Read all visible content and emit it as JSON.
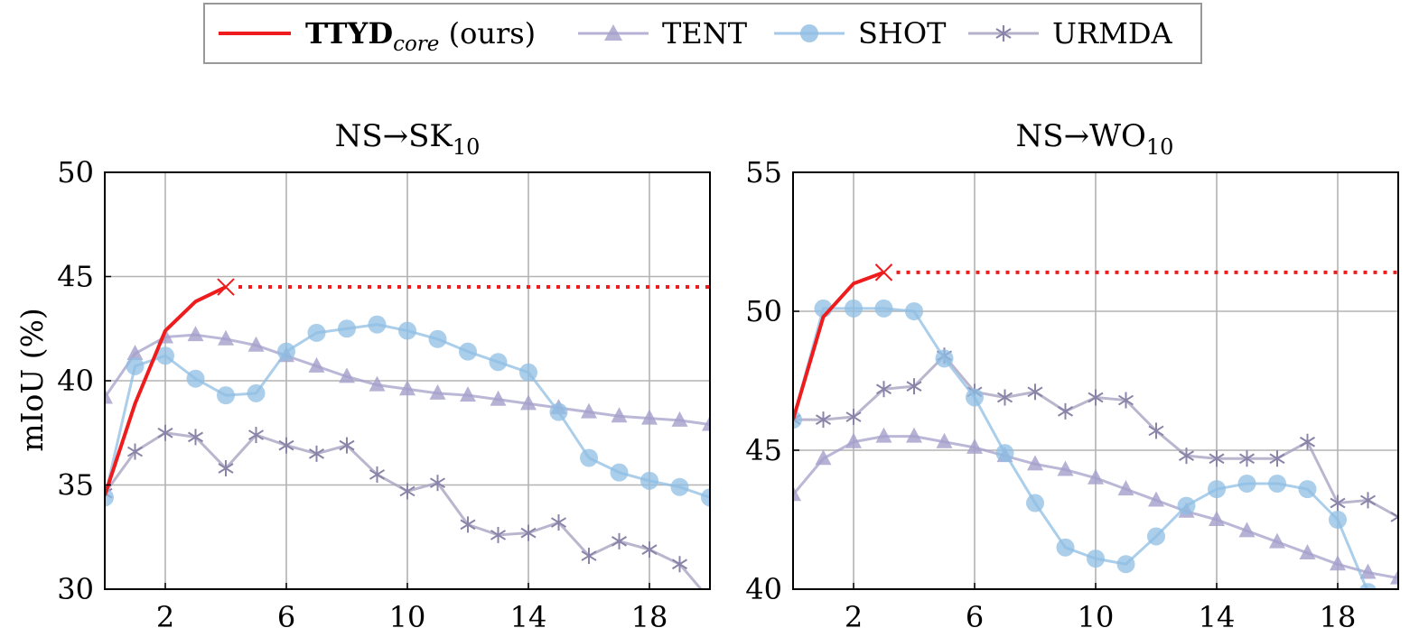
{
  "legend": {
    "items": [
      {
        "key": "ttyd",
        "label_main": "TTYD",
        "label_sub": "core",
        "label_tail": " (ours)",
        "color": "#ee1c1c",
        "marker": "line"
      },
      {
        "key": "tent",
        "label": "TENT",
        "color": "#a49fca",
        "marker": "triangle"
      },
      {
        "key": "shot",
        "label": "SHOT",
        "color": "#8fbde3",
        "marker": "circle"
      },
      {
        "key": "urmda",
        "label": "URMDA",
        "color": "#a39ebd",
        "marker": "asterisk"
      }
    ]
  },
  "colors": {
    "ttyd": "#ee1c1c",
    "tent": "#a49fca",
    "shot": "#8fbde3",
    "urmda": "#a39ebd",
    "grid": "#b3b3b3"
  },
  "chart_data": [
    {
      "type": "line",
      "title_main": "NS→SK",
      "title_sub": "10",
      "ylabel": "mIoU (%)",
      "xlim": [
        0,
        20
      ],
      "ylim": [
        30,
        50
      ],
      "xticks": [
        2,
        6,
        10,
        14,
        18
      ],
      "yticks": [
        30,
        35,
        40,
        45,
        50
      ],
      "grid": true,
      "series": [
        {
          "name": "TTYD_core (ours)",
          "key": "ttyd",
          "x": [
            0,
            1,
            2,
            3,
            4
          ],
          "values": [
            34.5,
            38.9,
            42.4,
            43.8,
            44.5
          ],
          "extend_to": 20
        },
        {
          "name": "TENT",
          "key": "tent",
          "x": [
            0,
            1,
            2,
            3,
            4,
            5,
            6,
            7,
            8,
            9,
            10,
            11,
            12,
            13,
            14,
            15,
            16,
            17,
            18,
            19,
            20
          ],
          "values": [
            39.2,
            41.3,
            42.1,
            42.2,
            42.0,
            41.7,
            41.2,
            40.7,
            40.2,
            39.8,
            39.6,
            39.4,
            39.3,
            39.1,
            38.9,
            38.7,
            38.5,
            38.3,
            38.2,
            38.1,
            37.9
          ]
        },
        {
          "name": "SHOT",
          "key": "shot",
          "x": [
            0,
            1,
            2,
            3,
            4,
            5,
            6,
            7,
            8,
            9,
            10,
            11,
            12,
            13,
            14,
            15,
            16,
            17,
            18,
            19,
            20
          ],
          "values": [
            34.4,
            40.7,
            41.2,
            40.1,
            39.3,
            39.4,
            41.4,
            42.3,
            42.5,
            42.7,
            42.4,
            42.0,
            41.4,
            40.9,
            40.4,
            38.5,
            36.3,
            35.6,
            35.2,
            34.9,
            34.4
          ]
        },
        {
          "name": "URMDA",
          "key": "urmda",
          "x": [
            0,
            1,
            2,
            3,
            4,
            5,
            6,
            7,
            8,
            9,
            10,
            11,
            12,
            13,
            14,
            15,
            16,
            17,
            18,
            19,
            20
          ],
          "values": [
            34.6,
            36.6,
            37.5,
            37.3,
            35.8,
            37.4,
            36.9,
            36.5,
            36.9,
            35.5,
            34.7,
            35.1,
            33.1,
            32.6,
            32.7,
            33.2,
            31.6,
            32.3,
            31.9,
            31.2,
            29.5
          ]
        }
      ]
    },
    {
      "type": "line",
      "title_main": "NS→WO",
      "title_sub": "10",
      "ylabel": "",
      "xlim": [
        0,
        20
      ],
      "ylim": [
        40,
        55
      ],
      "xticks": [
        2,
        6,
        10,
        14,
        18
      ],
      "yticks": [
        40,
        45,
        50,
        55
      ],
      "grid": true,
      "series": [
        {
          "name": "TTYD_core (ours)",
          "key": "ttyd",
          "x": [
            0,
            1,
            2,
            3
          ],
          "values": [
            46.1,
            49.8,
            51.0,
            51.4
          ],
          "extend_to": 20
        },
        {
          "name": "TENT",
          "key": "tent",
          "x": [
            0,
            1,
            2,
            3,
            4,
            5,
            6,
            7,
            8,
            9,
            10,
            11,
            12,
            13,
            14,
            15,
            16,
            17,
            18,
            19,
            20
          ],
          "values": [
            43.4,
            44.7,
            45.3,
            45.5,
            45.5,
            45.3,
            45.1,
            44.8,
            44.5,
            44.3,
            44.0,
            43.6,
            43.2,
            42.8,
            42.5,
            42.1,
            41.7,
            41.3,
            40.9,
            40.6,
            40.4
          ]
        },
        {
          "name": "SHOT",
          "key": "shot",
          "x": [
            0,
            1,
            2,
            3,
            4,
            5,
            6,
            7,
            8,
            9,
            10,
            11,
            12,
            13,
            14,
            15,
            16,
            17,
            18,
            19
          ],
          "values": [
            46.1,
            50.1,
            50.1,
            50.1,
            50.0,
            48.3,
            46.9,
            44.9,
            43.1,
            41.5,
            41.1,
            40.9,
            41.9,
            43.0,
            43.6,
            43.8,
            43.8,
            43.6,
            42.5,
            39.9
          ]
        },
        {
          "name": "URMDA",
          "key": "urmda",
          "x": [
            0,
            1,
            2,
            3,
            4,
            5,
            6,
            7,
            8,
            9,
            10,
            11,
            12,
            13,
            14,
            15,
            16,
            17,
            18,
            19,
            20
          ],
          "values": [
            46.1,
            46.1,
            46.2,
            47.2,
            47.3,
            48.4,
            47.1,
            46.9,
            47.1,
            46.4,
            46.9,
            46.8,
            45.7,
            44.8,
            44.7,
            44.7,
            44.7,
            45.3,
            43.1,
            43.2,
            42.6
          ]
        }
      ]
    }
  ]
}
